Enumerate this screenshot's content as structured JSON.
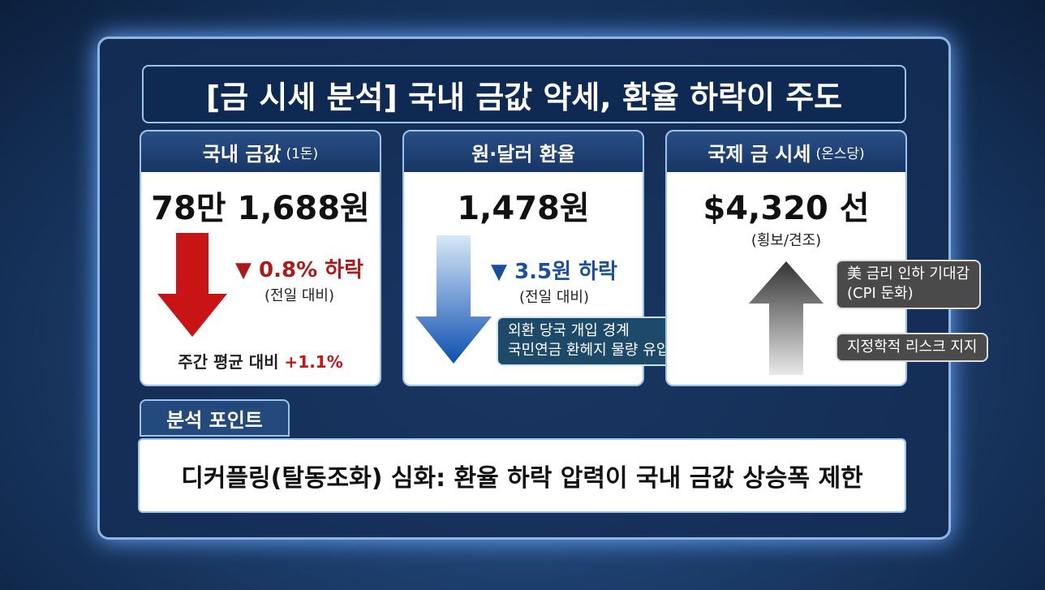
{
  "title": "[금 시세 분석] 국내 금값 약세, 환율 하락이 주도",
  "cards": [
    {
      "header": "국내 금값",
      "header_note": "(1돈)",
      "value": "78만 1,688원",
      "change": "▼ 0.8% 하락",
      "change_note": "(전일 대비)",
      "footer": "주간 평균 대비",
      "footer_change": "+1.1%"
    },
    {
      "header": "원·달러 환율",
      "value": "1,478원",
      "change": "▼ 3.5원 하락",
      "change_note": "(전일 대비)",
      "callout": [
        "외환 당국 개입 경계",
        "국민연금 환헤지 물량 유입"
      ]
    },
    {
      "header": "국제 금 시세",
      "header_note": "(온스당)",
      "value": "$4,320 선",
      "value_note": "(횡보/견조)",
      "callouts": [
        [
          "美 금리 인하 기대감",
          "(CPI 둔화)"
        ],
        [
          "지정학적 리스크 지지"
        ]
      ]
    }
  ],
  "analysis": {
    "label": "분석 포인트",
    "text": "디커플링(탈동조화) 심화: 환율 하락 압력이 국내 금값 상승폭 제한"
  }
}
